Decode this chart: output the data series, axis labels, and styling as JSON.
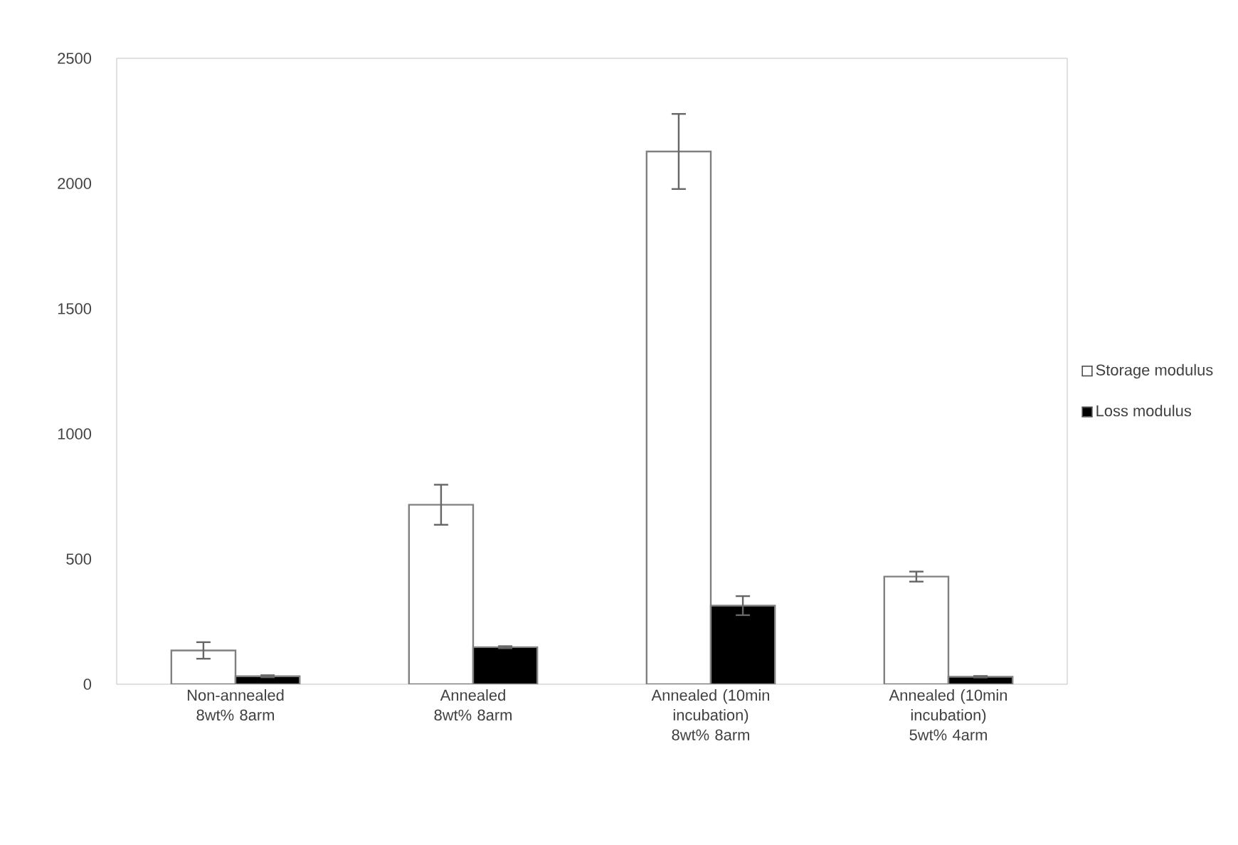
{
  "chart_data": {
    "type": "bar",
    "categories": [
      "Non-annealed 8wt% 8arm",
      "Annealed 8wt% 8arm",
      "Annealed (10min incubation) 8wt% 8arm",
      "Annealed (10min incubation) 5wt% 4arm"
    ],
    "series": [
      {
        "name": "Storage modulus",
        "color": "#ffffff",
        "values": [
          135,
          717,
          2128,
          430
        ],
        "errors": [
          33,
          80,
          150,
          20
        ]
      },
      {
        "name": "Loss modulus",
        "color": "#000000",
        "values": [
          32,
          148,
          314,
          30
        ],
        "errors": [
          4,
          4,
          38,
          3
        ]
      }
    ],
    "ylim": [
      0,
      2500
    ],
    "yticks": [
      0,
      500,
      1000,
      1500,
      2000,
      2500
    ],
    "grid": false,
    "legend": "right"
  }
}
